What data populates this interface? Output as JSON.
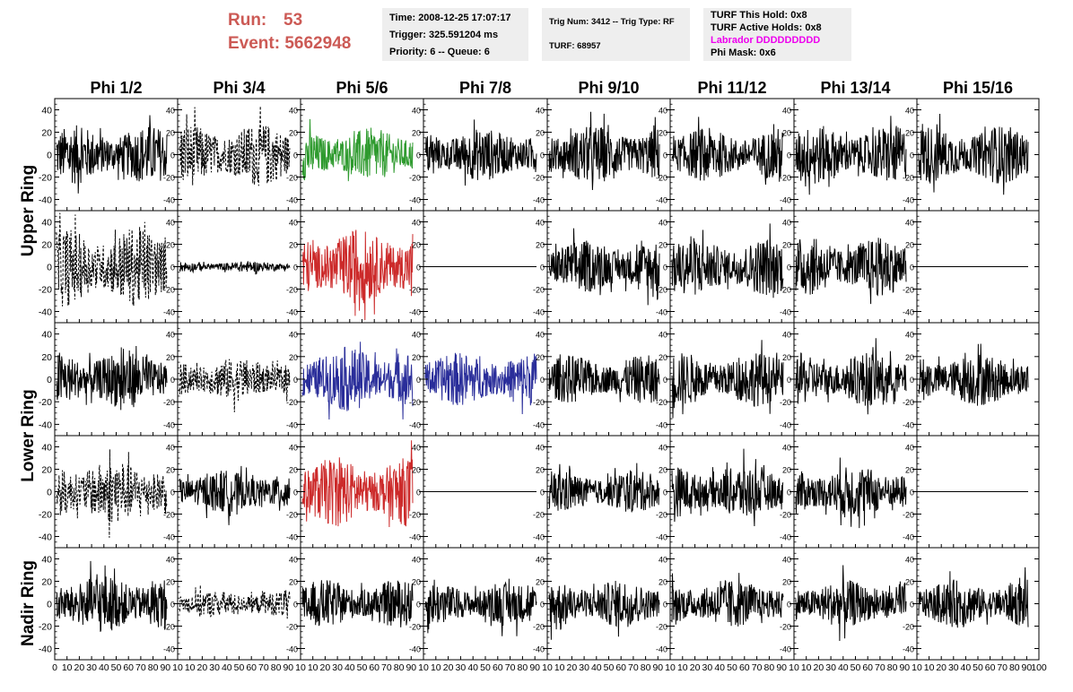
{
  "header": {
    "run_label": "Run:",
    "run_value": "53",
    "event_label": "Event:",
    "event_value": "5662948",
    "time_text": "Time: 2008-12-25 17:07:17",
    "trigger_text": "Trigger: 325.591204 ms",
    "priority_text": "Priority: 6 -- Queue: 6",
    "trig_num_text": "Trig Num: 3412 -- Trig Type: RF",
    "turf_text": "TURF: 68957",
    "turf_hold_text": "TURF This Hold: 0x8",
    "turf_active_text": "TURF Active Holds: 0x8",
    "labrador_text": "Labrador DDDDDDDDD",
    "phi_mask_text": "Phi Mask: 0x6",
    "labrador_color": "#ee00ee"
  },
  "chart_data": {
    "type": "line",
    "columns": [
      "Phi 1/2",
      "Phi 3/4",
      "Phi 5/6",
      "Phi 7/8",
      "Phi 9/10",
      "Phi 11/12",
      "Phi 13/14",
      "Phi 15/16"
    ],
    "rows": [
      "Upper Ring",
      "Lower Ring",
      "Nadir Ring"
    ],
    "ylim": [
      -50,
      50
    ],
    "yticks": [
      -40,
      -20,
      0,
      20,
      40
    ],
    "xlim": [
      0,
      100
    ],
    "xtick_labels": [
      [
        "0",
        "10",
        "20",
        "30",
        "40",
        "50",
        "60",
        "70",
        "80",
        "90",
        "10"
      ],
      [
        "10",
        "20",
        "30",
        "40",
        "50",
        "60",
        "70",
        "80",
        "90",
        "10"
      ],
      [
        "10",
        "20",
        "30",
        "40",
        "50",
        "60",
        "70",
        "80",
        "90",
        "10"
      ],
      [
        "10",
        "20",
        "30",
        "40",
        "50",
        "60",
        "70",
        "80",
        "90",
        "10"
      ],
      [
        "10",
        "20",
        "30",
        "40",
        "50",
        "60",
        "70",
        "80",
        "90",
        "10"
      ],
      [
        "10",
        "20",
        "30",
        "40",
        "50",
        "60",
        "70",
        "80",
        "90",
        "10"
      ],
      [
        "10",
        "20",
        "30",
        "40",
        "50",
        "60",
        "70",
        "80",
        "90",
        "10"
      ],
      [
        "10",
        "20",
        "30",
        "40",
        "50",
        "60",
        "70",
        "80",
        "90",
        "100"
      ]
    ],
    "panels": [
      [
        {
          "style": "solid",
          "color": "#000000",
          "amplitude": 22
        },
        {
          "style": "dashed",
          "color": "#000000",
          "amplitude": 24
        },
        {
          "style": "solid",
          "color": "#2e9a2e",
          "amplitude": 20
        },
        {
          "style": "solid",
          "color": "#000000",
          "amplitude": 20
        },
        {
          "style": "solid",
          "color": "#000000",
          "amplitude": 22
        },
        {
          "style": "solid",
          "color": "#000000",
          "amplitude": 20
        },
        {
          "style": "solid",
          "color": "#000000",
          "amplitude": 22
        },
        {
          "style": "solid",
          "color": "#000000",
          "amplitude": 22
        }
      ],
      [
        {
          "style": "dashed",
          "color": "#000000",
          "amplitude": 30
        },
        {
          "style": "solid",
          "color": "#000000",
          "amplitude": 4
        },
        {
          "style": "solid",
          "color": "#cc2a2a",
          "amplitude": 28
        },
        {
          "style": "solid",
          "color": "#000000",
          "amplitude": 0
        },
        {
          "style": "solid",
          "color": "#000000",
          "amplitude": 20
        },
        {
          "style": "solid",
          "color": "#000000",
          "amplitude": 22
        },
        {
          "style": "solid",
          "color": "#000000",
          "amplitude": 22
        },
        {
          "style": "solid",
          "color": "#000000",
          "amplitude": 0
        }
      ],
      [
        {
          "style": "solid",
          "color": "#000000",
          "amplitude": 22
        },
        {
          "style": "dashed",
          "color": "#000000",
          "amplitude": 16
        },
        {
          "style": "solid",
          "color": "#2a2e9a",
          "amplitude": 24
        },
        {
          "style": "solid",
          "color": "#2a2e9a",
          "amplitude": 20
        },
        {
          "style": "solid",
          "color": "#000000",
          "amplitude": 18
        },
        {
          "style": "solid",
          "color": "#000000",
          "amplitude": 20
        },
        {
          "style": "solid",
          "color": "#000000",
          "amplitude": 20
        },
        {
          "style": "solid",
          "color": "#000000",
          "amplitude": 20
        }
      ],
      [
        {
          "style": "dashed",
          "color": "#000000",
          "amplitude": 24
        },
        {
          "style": "solid",
          "color": "#000000",
          "amplitude": 16
        },
        {
          "style": "solid",
          "color": "#cc2a2a",
          "amplitude": 26
        },
        {
          "style": "solid",
          "color": "#000000",
          "amplitude": 0
        },
        {
          "style": "solid",
          "color": "#000000",
          "amplitude": 16
        },
        {
          "style": "solid",
          "color": "#000000",
          "amplitude": 20
        },
        {
          "style": "solid",
          "color": "#000000",
          "amplitude": 20
        },
        {
          "style": "solid",
          "color": "#000000",
          "amplitude": 0
        }
      ],
      [
        {
          "style": "solid",
          "color": "#000000",
          "amplitude": 22
        },
        {
          "style": "dashed",
          "color": "#000000",
          "amplitude": 10
        },
        {
          "style": "solid",
          "color": "#000000",
          "amplitude": 18
        },
        {
          "style": "solid",
          "color": "#000000",
          "amplitude": 16
        },
        {
          "style": "solid",
          "color": "#000000",
          "amplitude": 18
        },
        {
          "style": "solid",
          "color": "#000000",
          "amplitude": 18
        },
        {
          "style": "solid",
          "color": "#000000",
          "amplitude": 18
        },
        {
          "style": "solid",
          "color": "#000000",
          "amplitude": 18
        }
      ]
    ]
  }
}
